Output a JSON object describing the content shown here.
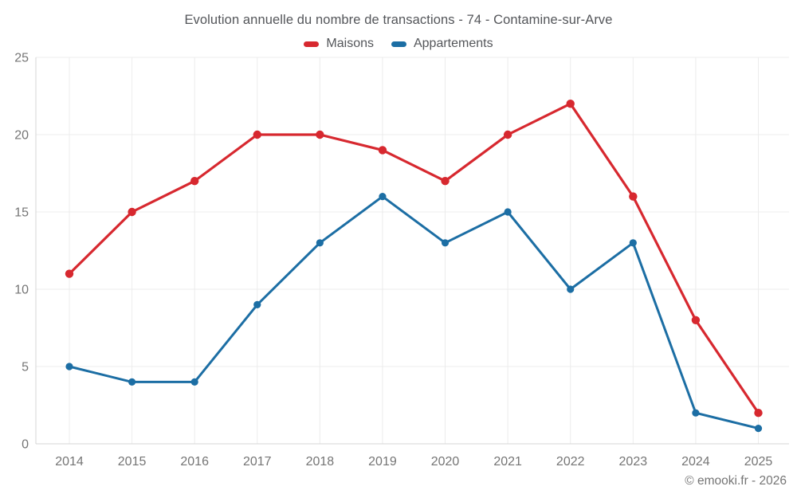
{
  "chart_data": {
    "type": "line",
    "title": "Evolution annuelle du nombre de transactions - 74 - Contamine-sur-Arve",
    "categories": [
      "2014",
      "2015",
      "2016",
      "2017",
      "2018",
      "2019",
      "2020",
      "2021",
      "2022",
      "2023",
      "2024",
      "2025"
    ],
    "series": [
      {
        "name": "Maisons",
        "color": "#d7282f",
        "values": [
          11,
          15,
          17,
          20,
          20,
          19,
          17,
          20,
          22,
          16,
          8,
          2
        ]
      },
      {
        "name": "Appartements",
        "color": "#1c6ea4",
        "values": [
          5,
          4,
          4,
          9,
          13,
          16,
          13,
          15,
          10,
          13,
          2,
          1
        ]
      }
    ],
    "xlabel": "",
    "ylabel": "",
    "ylim": [
      0,
      25
    ],
    "yticks": [
      0,
      5,
      10,
      15,
      20,
      25
    ],
    "grid": true,
    "legend_position": "top"
  },
  "footer": {
    "copyright": "© emooki.fr - 2026"
  },
  "colors": {
    "maisons": "#d7282f",
    "appartements": "#1c6ea4",
    "title_text": "#54565a",
    "axis_text": "#757575",
    "gridline": "#ececec",
    "axis_line": "#d6d6d6"
  }
}
